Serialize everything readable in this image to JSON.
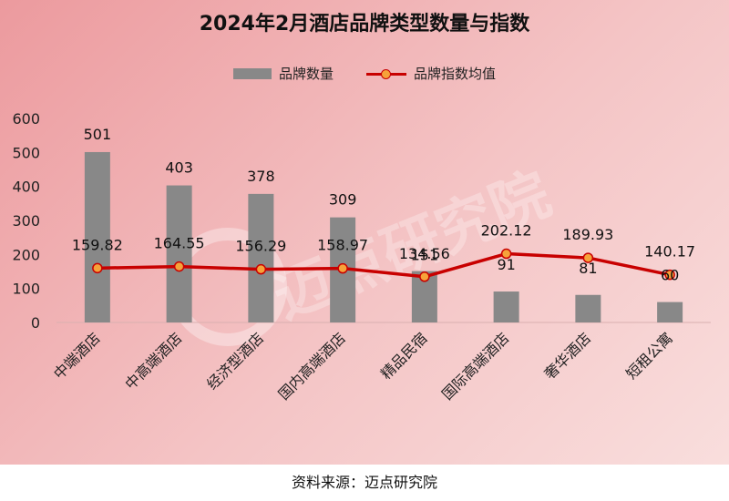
{
  "title": "2024年2月酒店品牌类型数量与指数",
  "legend": {
    "bar_label": "品牌数量",
    "line_label": "品牌指数均值"
  },
  "watermark": "迈点研究院",
  "source": "资料来源：迈点研究院",
  "colors": {
    "bar": "#888888",
    "line": "#c80000",
    "marker_fill": "#f6a23a"
  },
  "chart_data": {
    "type": "bar",
    "categories": [
      "中端酒店",
      "中高端酒店",
      "经济型酒店",
      "国内高端酒店",
      "精品民宿",
      "国际高端酒店",
      "奢华酒店",
      "短租公寓"
    ],
    "series": [
      {
        "name": "品牌数量",
        "type": "bar",
        "values": [
          501,
          403,
          378,
          309,
          151,
          91,
          81,
          60
        ]
      },
      {
        "name": "品牌指数均值",
        "type": "line",
        "values": [
          159.82,
          164.55,
          156.29,
          158.97,
          134.56,
          202.12,
          189.93,
          140.17
        ]
      }
    ],
    "ylim": [
      0,
      600
    ],
    "yticks": [
      0,
      100,
      200,
      300,
      400,
      500,
      600
    ],
    "grid": false,
    "legend_position": "top"
  }
}
